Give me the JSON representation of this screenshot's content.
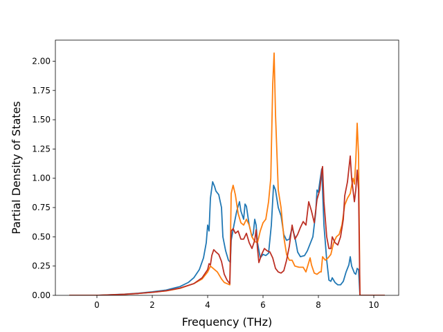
{
  "chart_data": {
    "type": "line",
    "title": "",
    "xlabel": "Frequency (THz)",
    "ylabel": "Partial Density of States",
    "xlim": [
      -1.5,
      10.9
    ],
    "ylim": [
      0,
      2.18
    ],
    "x_ticks": [
      0,
      2,
      4,
      6,
      8,
      10
    ],
    "x_tick_labels": [
      "0",
      "2",
      "4",
      "6",
      "8",
      "10"
    ],
    "y_ticks": [
      0,
      0.25,
      0.5,
      0.75,
      1.0,
      1.25,
      1.5,
      1.75,
      2.0
    ],
    "y_tick_labels": [
      "0.00",
      "0.25",
      "0.50",
      "0.75",
      "1.00",
      "1.25",
      "1.50",
      "1.75",
      "2.00"
    ],
    "grid": false,
    "legend": "none",
    "series": [
      {
        "color": "#1f77b4",
        "points": [
          [
            -1.0,
            0
          ],
          [
            0,
            0
          ],
          [
            0.5,
            0.005
          ],
          [
            1.0,
            0.01
          ],
          [
            1.5,
            0.018
          ],
          [
            2.0,
            0.03
          ],
          [
            2.5,
            0.045
          ],
          [
            3.0,
            0.075
          ],
          [
            3.3,
            0.11
          ],
          [
            3.5,
            0.15
          ],
          [
            3.7,
            0.22
          ],
          [
            3.85,
            0.32
          ],
          [
            3.95,
            0.45
          ],
          [
            4.0,
            0.6
          ],
          [
            4.05,
            0.55
          ],
          [
            4.1,
            0.83
          ],
          [
            4.18,
            0.97
          ],
          [
            4.25,
            0.93
          ],
          [
            4.3,
            0.89
          ],
          [
            4.4,
            0.86
          ],
          [
            4.5,
            0.75
          ],
          [
            4.55,
            0.5
          ],
          [
            4.65,
            0.38
          ],
          [
            4.75,
            0.3
          ],
          [
            4.82,
            0.28
          ],
          [
            4.85,
            0.47
          ],
          [
            4.95,
            0.6
          ],
          [
            5.05,
            0.72
          ],
          [
            5.15,
            0.8
          ],
          [
            5.2,
            0.72
          ],
          [
            5.3,
            0.65
          ],
          [
            5.35,
            0.78
          ],
          [
            5.4,
            0.76
          ],
          [
            5.5,
            0.6
          ],
          [
            5.6,
            0.5
          ],
          [
            5.65,
            0.53
          ],
          [
            5.7,
            0.65
          ],
          [
            5.75,
            0.6
          ],
          [
            5.8,
            0.45
          ],
          [
            5.9,
            0.32
          ],
          [
            6.0,
            0.35
          ],
          [
            6.1,
            0.34
          ],
          [
            6.2,
            0.36
          ],
          [
            6.3,
            0.6
          ],
          [
            6.38,
            0.94
          ],
          [
            6.45,
            0.9
          ],
          [
            6.55,
            0.75
          ],
          [
            6.65,
            0.68
          ],
          [
            6.75,
            0.52
          ],
          [
            6.85,
            0.47
          ],
          [
            6.95,
            0.48
          ],
          [
            7.05,
            0.58
          ],
          [
            7.15,
            0.5
          ],
          [
            7.25,
            0.37
          ],
          [
            7.35,
            0.33
          ],
          [
            7.5,
            0.34
          ],
          [
            7.6,
            0.38
          ],
          [
            7.7,
            0.44
          ],
          [
            7.8,
            0.5
          ],
          [
            7.9,
            0.7
          ],
          [
            7.95,
            0.9
          ],
          [
            8.0,
            0.88
          ],
          [
            8.05,
            0.97
          ],
          [
            8.12,
            1.08
          ],
          [
            8.2,
            0.6
          ],
          [
            8.3,
            0.3
          ],
          [
            8.38,
            0.13
          ],
          [
            8.45,
            0.12
          ],
          [
            8.5,
            0.15
          ],
          [
            8.6,
            0.11
          ],
          [
            8.7,
            0.09
          ],
          [
            8.8,
            0.09
          ],
          [
            8.9,
            0.12
          ],
          [
            9.0,
            0.2
          ],
          [
            9.1,
            0.26
          ],
          [
            9.15,
            0.33
          ],
          [
            9.2,
            0.25
          ],
          [
            9.3,
            0.19
          ],
          [
            9.35,
            0.18
          ],
          [
            9.4,
            0.23
          ],
          [
            9.45,
            0.22
          ],
          [
            9.5,
            0.0
          ],
          [
            10.4,
            0.0
          ]
        ]
      },
      {
        "color": "#ff7f0e",
        "points": [
          [
            -1.0,
            0
          ],
          [
            0,
            0
          ],
          [
            0.5,
            0.004
          ],
          [
            1.0,
            0.009
          ],
          [
            1.5,
            0.016
          ],
          [
            2.0,
            0.026
          ],
          [
            2.5,
            0.038
          ],
          [
            3.0,
            0.06
          ],
          [
            3.5,
            0.1
          ],
          [
            3.8,
            0.14
          ],
          [
            4.0,
            0.2
          ],
          [
            4.1,
            0.25
          ],
          [
            4.2,
            0.23
          ],
          [
            4.35,
            0.2
          ],
          [
            4.5,
            0.14
          ],
          [
            4.6,
            0.11
          ],
          [
            4.7,
            0.1
          ],
          [
            4.8,
            0.09
          ],
          [
            4.85,
            0.87
          ],
          [
            4.92,
            0.94
          ],
          [
            5.0,
            0.86
          ],
          [
            5.1,
            0.7
          ],
          [
            5.2,
            0.62
          ],
          [
            5.3,
            0.6
          ],
          [
            5.4,
            0.65
          ],
          [
            5.5,
            0.6
          ],
          [
            5.6,
            0.5
          ],
          [
            5.7,
            0.46
          ],
          [
            5.8,
            0.45
          ],
          [
            5.9,
            0.55
          ],
          [
            6.0,
            0.62
          ],
          [
            6.1,
            0.65
          ],
          [
            6.2,
            0.8
          ],
          [
            6.28,
            1.0
          ],
          [
            6.35,
            1.8
          ],
          [
            6.4,
            2.07
          ],
          [
            6.45,
            1.55
          ],
          [
            6.55,
            0.9
          ],
          [
            6.65,
            0.75
          ],
          [
            6.75,
            0.5
          ],
          [
            6.85,
            0.35
          ],
          [
            6.95,
            0.3
          ],
          [
            7.05,
            0.3
          ],
          [
            7.15,
            0.25
          ],
          [
            7.3,
            0.24
          ],
          [
            7.45,
            0.24
          ],
          [
            7.55,
            0.2
          ],
          [
            7.65,
            0.28
          ],
          [
            7.7,
            0.32
          ],
          [
            7.75,
            0.26
          ],
          [
            7.85,
            0.19
          ],
          [
            7.95,
            0.18
          ],
          [
            8.05,
            0.2
          ],
          [
            8.1,
            0.2
          ],
          [
            8.15,
            0.33
          ],
          [
            8.25,
            0.3
          ],
          [
            8.35,
            0.32
          ],
          [
            8.45,
            0.35
          ],
          [
            8.55,
            0.45
          ],
          [
            8.65,
            0.5
          ],
          [
            8.75,
            0.52
          ],
          [
            8.85,
            0.6
          ],
          [
            8.95,
            0.77
          ],
          [
            9.05,
            0.83
          ],
          [
            9.15,
            0.87
          ],
          [
            9.25,
            1.0
          ],
          [
            9.3,
            0.95
          ],
          [
            9.35,
            1.15
          ],
          [
            9.4,
            1.47
          ],
          [
            9.45,
            1.2
          ],
          [
            9.5,
            0.0
          ],
          [
            10.4,
            0.0
          ]
        ]
      },
      {
        "color": "#bc2f23",
        "points": [
          [
            -1.0,
            0
          ],
          [
            0,
            0
          ],
          [
            0.5,
            0.004
          ],
          [
            1.0,
            0.009
          ],
          [
            1.5,
            0.016
          ],
          [
            2.0,
            0.026
          ],
          [
            2.5,
            0.039
          ],
          [
            3.0,
            0.062
          ],
          [
            3.5,
            0.1
          ],
          [
            3.8,
            0.15
          ],
          [
            4.0,
            0.22
          ],
          [
            4.05,
            0.27
          ],
          [
            4.1,
            0.26
          ],
          [
            4.15,
            0.34
          ],
          [
            4.22,
            0.39
          ],
          [
            4.3,
            0.37
          ],
          [
            4.4,
            0.35
          ],
          [
            4.5,
            0.29
          ],
          [
            4.6,
            0.18
          ],
          [
            4.7,
            0.13
          ],
          [
            4.8,
            0.1
          ],
          [
            4.85,
            0.55
          ],
          [
            4.92,
            0.57
          ],
          [
            5.0,
            0.53
          ],
          [
            5.1,
            0.55
          ],
          [
            5.2,
            0.48
          ],
          [
            5.3,
            0.48
          ],
          [
            5.4,
            0.53
          ],
          [
            5.5,
            0.45
          ],
          [
            5.6,
            0.4
          ],
          [
            5.7,
            0.47
          ],
          [
            5.75,
            0.56
          ],
          [
            5.8,
            0.4
          ],
          [
            5.85,
            0.28
          ],
          [
            5.95,
            0.35
          ],
          [
            6.05,
            0.4
          ],
          [
            6.15,
            0.38
          ],
          [
            6.25,
            0.37
          ],
          [
            6.35,
            0.32
          ],
          [
            6.45,
            0.23
          ],
          [
            6.55,
            0.2
          ],
          [
            6.65,
            0.19
          ],
          [
            6.75,
            0.21
          ],
          [
            6.85,
            0.3
          ],
          [
            6.95,
            0.42
          ],
          [
            7.05,
            0.6
          ],
          [
            7.15,
            0.48
          ],
          [
            7.25,
            0.52
          ],
          [
            7.35,
            0.58
          ],
          [
            7.45,
            0.63
          ],
          [
            7.55,
            0.6
          ],
          [
            7.65,
            0.8
          ],
          [
            7.75,
            0.72
          ],
          [
            7.85,
            0.62
          ],
          [
            7.95,
            0.82
          ],
          [
            8.05,
            0.9
          ],
          [
            8.12,
            1.06
          ],
          [
            8.15,
            1.1
          ],
          [
            8.2,
            0.8
          ],
          [
            8.3,
            0.5
          ],
          [
            8.38,
            0.4
          ],
          [
            8.45,
            0.4
          ],
          [
            8.5,
            0.5
          ],
          [
            8.6,
            0.45
          ],
          [
            8.7,
            0.43
          ],
          [
            8.8,
            0.5
          ],
          [
            8.9,
            0.65
          ],
          [
            8.95,
            0.85
          ],
          [
            9.05,
            0.97
          ],
          [
            9.15,
            1.19
          ],
          [
            9.2,
            1.0
          ],
          [
            9.3,
            0.8
          ],
          [
            9.35,
            0.9
          ],
          [
            9.4,
            1.07
          ],
          [
            9.45,
            0.9
          ],
          [
            9.5,
            0.0
          ],
          [
            10.4,
            0.0
          ]
        ]
      }
    ]
  }
}
